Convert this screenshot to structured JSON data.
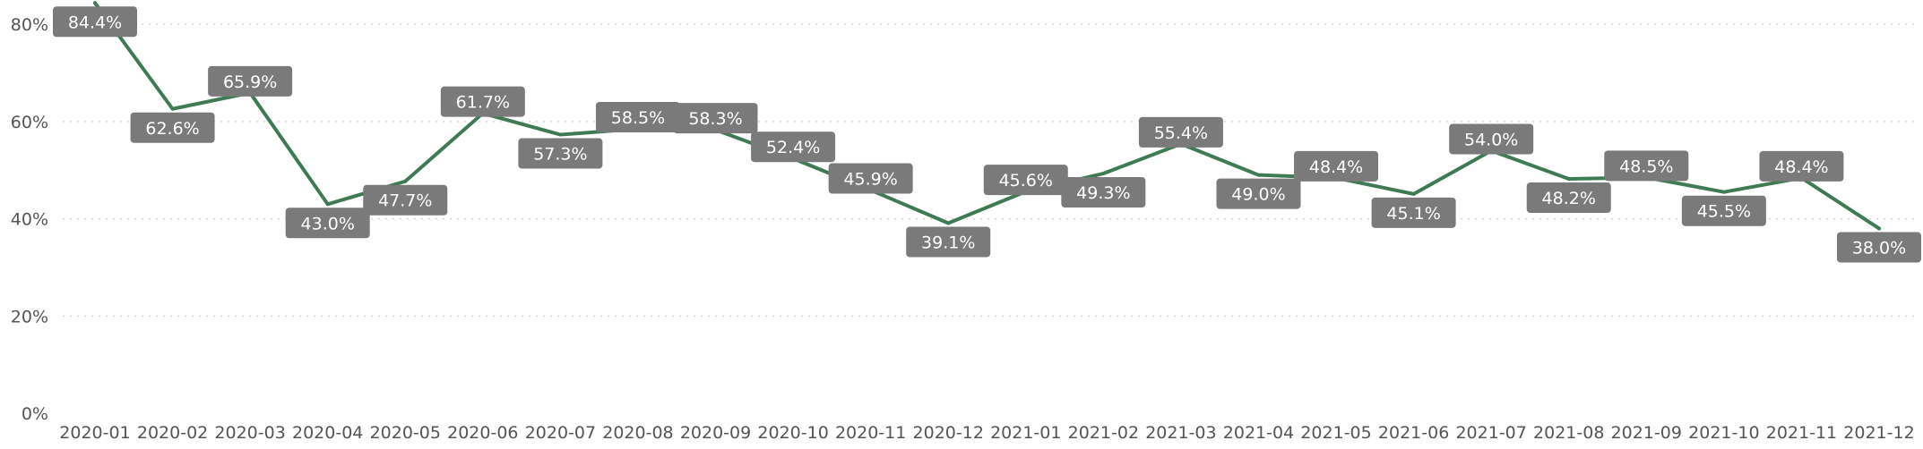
{
  "chart_data": {
    "type": "line",
    "categories": [
      "2020-01",
      "2020-02",
      "2020-03",
      "2020-04",
      "2020-05",
      "2020-06",
      "2020-07",
      "2020-08",
      "2020-09",
      "2020-10",
      "2020-11",
      "2020-12",
      "2021-01",
      "2021-02",
      "2021-03",
      "2021-04",
      "2021-05",
      "2021-06",
      "2021-07",
      "2021-08",
      "2021-09",
      "2021-10",
      "2021-11",
      "2021-12"
    ],
    "values": [
      84.4,
      62.6,
      65.9,
      43.0,
      47.7,
      61.7,
      57.3,
      58.5,
      58.3,
      52.4,
      45.9,
      39.1,
      45.6,
      49.3,
      55.4,
      49.0,
      48.4,
      45.1,
      54.0,
      48.2,
      48.5,
      45.5,
      48.4,
      38.0
    ],
    "data_labels": [
      "84.4%",
      "62.6%",
      "65.9%",
      "43.0%",
      "47.7%",
      "61.7%",
      "57.3%",
      "58.5%",
      "58.3%",
      "52.4%",
      "45.9%",
      "39.1%",
      "45.6%",
      "49.3%",
      "55.4%",
      "49.0%",
      "48.4%",
      "45.1%",
      "54.0%",
      "48.2%",
      "48.5%",
      "45.5%",
      "48.4%",
      "38.0%"
    ],
    "ylim": [
      0,
      85
    ],
    "yticks": [
      0,
      20,
      40,
      60,
      80
    ],
    "ytick_labels": [
      "0%",
      "20%",
      "40%",
      "60%",
      "80%"
    ],
    "title": "",
    "xlabel": "",
    "ylabel": "",
    "grid": true,
    "line_color": "#3e7b55",
    "label_bg_color": "#7a7a7a",
    "label_text_color": "#ffffff"
  }
}
